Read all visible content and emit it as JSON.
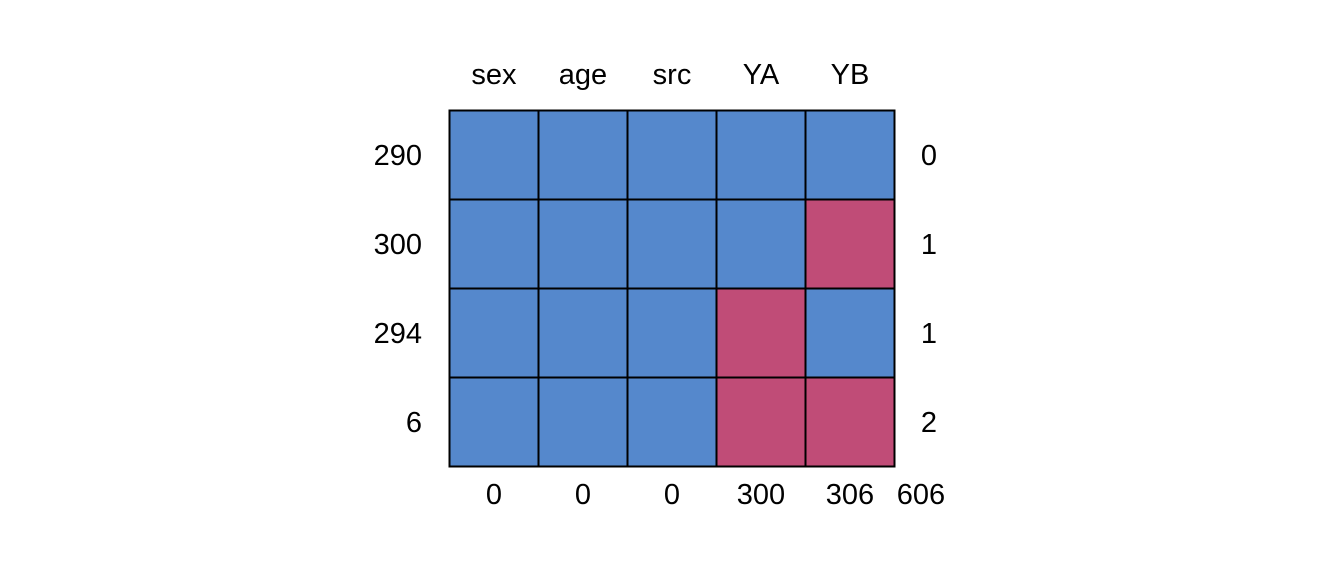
{
  "chart_data": {
    "type": "heatmap",
    "title": "",
    "columns": [
      "sex",
      "age",
      "src",
      "YA",
      "YB"
    ],
    "row_counts": [
      "290",
      "300",
      "294",
      "6"
    ],
    "row_missing": [
      "0",
      "1",
      "1",
      "2"
    ],
    "column_missing": [
      "0",
      "0",
      "0",
      "300",
      "306"
    ],
    "total_missing": "606",
    "pattern": [
      [
        1,
        1,
        1,
        1,
        1
      ],
      [
        1,
        1,
        1,
        1,
        0
      ],
      [
        1,
        1,
        1,
        0,
        1
      ],
      [
        1,
        1,
        1,
        0,
        0
      ]
    ],
    "legend": "none",
    "colors": {
      "observed": "#5588CC",
      "missing": "#C04C77",
      "border": "#000000"
    }
  }
}
